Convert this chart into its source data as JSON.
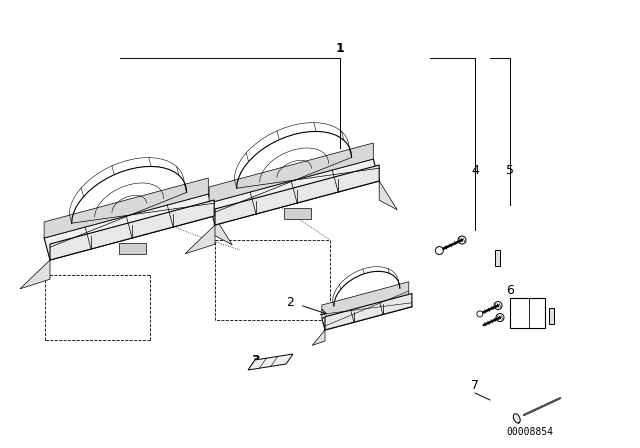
{
  "bg_color": "#ffffff",
  "line_color": "#000000",
  "label_color": "#000000",
  "part_number_label": "00008854",
  "fig_width": 6.4,
  "fig_height": 4.48,
  "dpi": 100,
  "lw_main": 0.8,
  "lw_thin": 0.5,
  "lw_detail": 0.4
}
